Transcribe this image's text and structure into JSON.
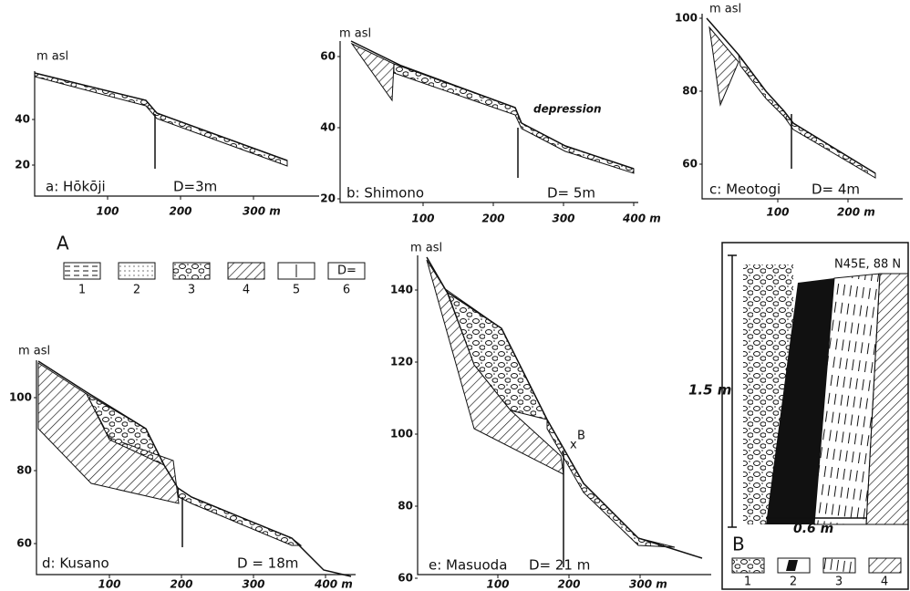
{
  "panels": [
    {
      "label": "a: Hōkōji",
      "d": "D=3m",
      "axis_label": "m asl",
      "xticks": [
        100,
        200,
        {
          "value": 300,
          "label": "300 m"
        }
      ],
      "yticks": [
        20,
        40
      ]
    },
    {
      "label": "b: Shimono",
      "d": "D= 5m",
      "axis_label": "m asl",
      "xticks": [
        100,
        200,
        300,
        {
          "value": 400,
          "label": "400 m"
        }
      ],
      "yticks": [
        20,
        40,
        60
      ]
    },
    {
      "label": "c: Meotogi",
      "d": "D= 4m",
      "axis_label": "m asl",
      "xticks": [
        100,
        {
          "value": 200,
          "label": "200 m"
        }
      ],
      "yticks": [
        60,
        80,
        100
      ]
    },
    {
      "label": "d: Kusano",
      "d": "D = 18m",
      "axis_label": "m asl",
      "xticks": [
        100,
        200,
        300,
        {
          "value": 400,
          "label": "400 m"
        }
      ],
      "yticks": [
        60,
        80,
        100
      ]
    },
    {
      "label": "e: Masuoda",
      "d": "D= 21 m",
      "axis_label": "m asl",
      "xticks": [
        100,
        200,
        {
          "value": 300,
          "label": "300 m"
        }
      ],
      "yticks": [
        60,
        80,
        100,
        120,
        140
      ]
    }
  ],
  "depression": "depression",
  "point_b": "B",
  "legend_a": {
    "title": "A",
    "items": [
      "1",
      "2",
      "3",
      "4",
      "5",
      "6"
    ],
    "symbol_6": "D="
  },
  "section_b": {
    "title": "B",
    "strike": "N45E, 88 N",
    "height": "1.5 m",
    "width": "0.6 m",
    "items": [
      "1",
      "2",
      "3",
      "4"
    ]
  }
}
